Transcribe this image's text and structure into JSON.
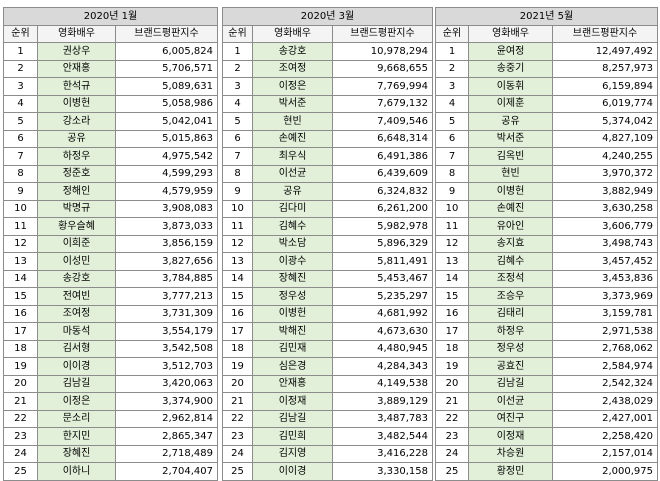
{
  "tables": [
    {
      "period": "2020년 1월",
      "headers": [
        "순위",
        "영화배우",
        "브랜드평판지수"
      ],
      "rows": [
        [
          "1",
          "권상우",
          "6,005,824"
        ],
        [
          "2",
          "안재홍",
          "5,706,571"
        ],
        [
          "3",
          "한석규",
          "5,089,631"
        ],
        [
          "4",
          "이병헌",
          "5,058,986"
        ],
        [
          "5",
          "강소라",
          "5,042,041"
        ],
        [
          "6",
          "공유",
          "5,015,863"
        ],
        [
          "7",
          "하정우",
          "4,975,542"
        ],
        [
          "8",
          "정준호",
          "4,599,293"
        ],
        [
          "9",
          "정해인",
          "4,579,959"
        ],
        [
          "10",
          "박명규",
          "3,908,083"
        ],
        [
          "11",
          "황우슬혜",
          "3,873,033"
        ],
        [
          "12",
          "이희준",
          "3,856,159"
        ],
        [
          "13",
          "이성민",
          "3,827,656"
        ],
        [
          "14",
          "송강호",
          "3,784,885"
        ],
        [
          "15",
          "전여빈",
          "3,777,213"
        ],
        [
          "16",
          "조여정",
          "3,731,309"
        ],
        [
          "17",
          "마동석",
          "3,554,179"
        ],
        [
          "18",
          "김서형",
          "3,542,508"
        ],
        [
          "19",
          "이이경",
          "3,512,703"
        ],
        [
          "20",
          "김남길",
          "3,420,063"
        ],
        [
          "21",
          "이정은",
          "3,374,900"
        ],
        [
          "22",
          "문소리",
          "2,962,814"
        ],
        [
          "23",
          "한지민",
          "2,865,347"
        ],
        [
          "24",
          "장혜진",
          "2,718,489"
        ],
        [
          "25",
          "이하니",
          "2,704,407"
        ]
      ]
    },
    {
      "period": "2020년 3월",
      "headers": [
        "순위",
        "영화배우",
        "브랜드평판지수"
      ],
      "rows": [
        [
          "1",
          "송강호",
          "10,978,294"
        ],
        [
          "2",
          "조여정",
          "9,668,655"
        ],
        [
          "3",
          "이정은",
          "7,769,994"
        ],
        [
          "4",
          "박서준",
          "7,679,132"
        ],
        [
          "5",
          "현빈",
          "7,409,546"
        ],
        [
          "6",
          "손예진",
          "6,648,314"
        ],
        [
          "7",
          "최우식",
          "6,491,386"
        ],
        [
          "8",
          "이선균",
          "6,439,609"
        ],
        [
          "9",
          "공유",
          "6,324,832"
        ],
        [
          "10",
          "김다미",
          "6,261,200"
        ],
        [
          "11",
          "김혜수",
          "5,982,978"
        ],
        [
          "12",
          "박소담",
          "5,896,329"
        ],
        [
          "13",
          "이광수",
          "5,811,491"
        ],
        [
          "14",
          "장혜진",
          "5,453,467"
        ],
        [
          "15",
          "정우성",
          "5,235,297"
        ],
        [
          "16",
          "이병헌",
          "4,681,992"
        ],
        [
          "17",
          "박해진",
          "4,673,630"
        ],
        [
          "18",
          "김민재",
          "4,480,945"
        ],
        [
          "19",
          "심은경",
          "4,284,343"
        ],
        [
          "20",
          "안재홍",
          "4,149,538"
        ],
        [
          "21",
          "이정재",
          "3,889,129"
        ],
        [
          "22",
          "김남길",
          "3,487,783"
        ],
        [
          "23",
          "김민희",
          "3,482,544"
        ],
        [
          "24",
          "김지영",
          "3,416,228"
        ],
        [
          "25",
          "이이경",
          "3,330,158"
        ]
      ]
    },
    {
      "period": "2021년 5월",
      "headers": [
        "순위",
        "영화배우",
        "브랜드평판지수"
      ],
      "rows": [
        [
          "1",
          "윤여정",
          "12,497,492"
        ],
        [
          "2",
          "송중기",
          "8,257,973"
        ],
        [
          "3",
          "이동휘",
          "6,159,894"
        ],
        [
          "4",
          "이제훈",
          "6,019,774"
        ],
        [
          "5",
          "공유",
          "5,374,042"
        ],
        [
          "6",
          "박서준",
          "4,827,109"
        ],
        [
          "7",
          "김옥빈",
          "4,240,255"
        ],
        [
          "8",
          "현빈",
          "3,970,372"
        ],
        [
          "9",
          "이병헌",
          "3,882,949"
        ],
        [
          "10",
          "손예진",
          "3,630,258"
        ],
        [
          "11",
          "유아인",
          "3,606,779"
        ],
        [
          "12",
          "송지효",
          "3,498,743"
        ],
        [
          "13",
          "김혜수",
          "3,457,452"
        ],
        [
          "14",
          "조정석",
          "3,453,836"
        ],
        [
          "15",
          "조승우",
          "3,373,969"
        ],
        [
          "16",
          "김태리",
          "3,159,781"
        ],
        [
          "17",
          "하정우",
          "2,971,538"
        ],
        [
          "18",
          "정우성",
          "2,768,062"
        ],
        [
          "19",
          "공효진",
          "2,584,974"
        ],
        [
          "20",
          "김남길",
          "2,542,324"
        ],
        [
          "21",
          "이선균",
          "2,438,029"
        ],
        [
          "22",
          "여진구",
          "2,427,001"
        ],
        [
          "23",
          "이정재",
          "2,258,420"
        ],
        [
          "24",
          "차승원",
          "2,157,014"
        ],
        [
          "25",
          "황정민",
          "2,000,975"
        ]
      ]
    }
  ]
}
